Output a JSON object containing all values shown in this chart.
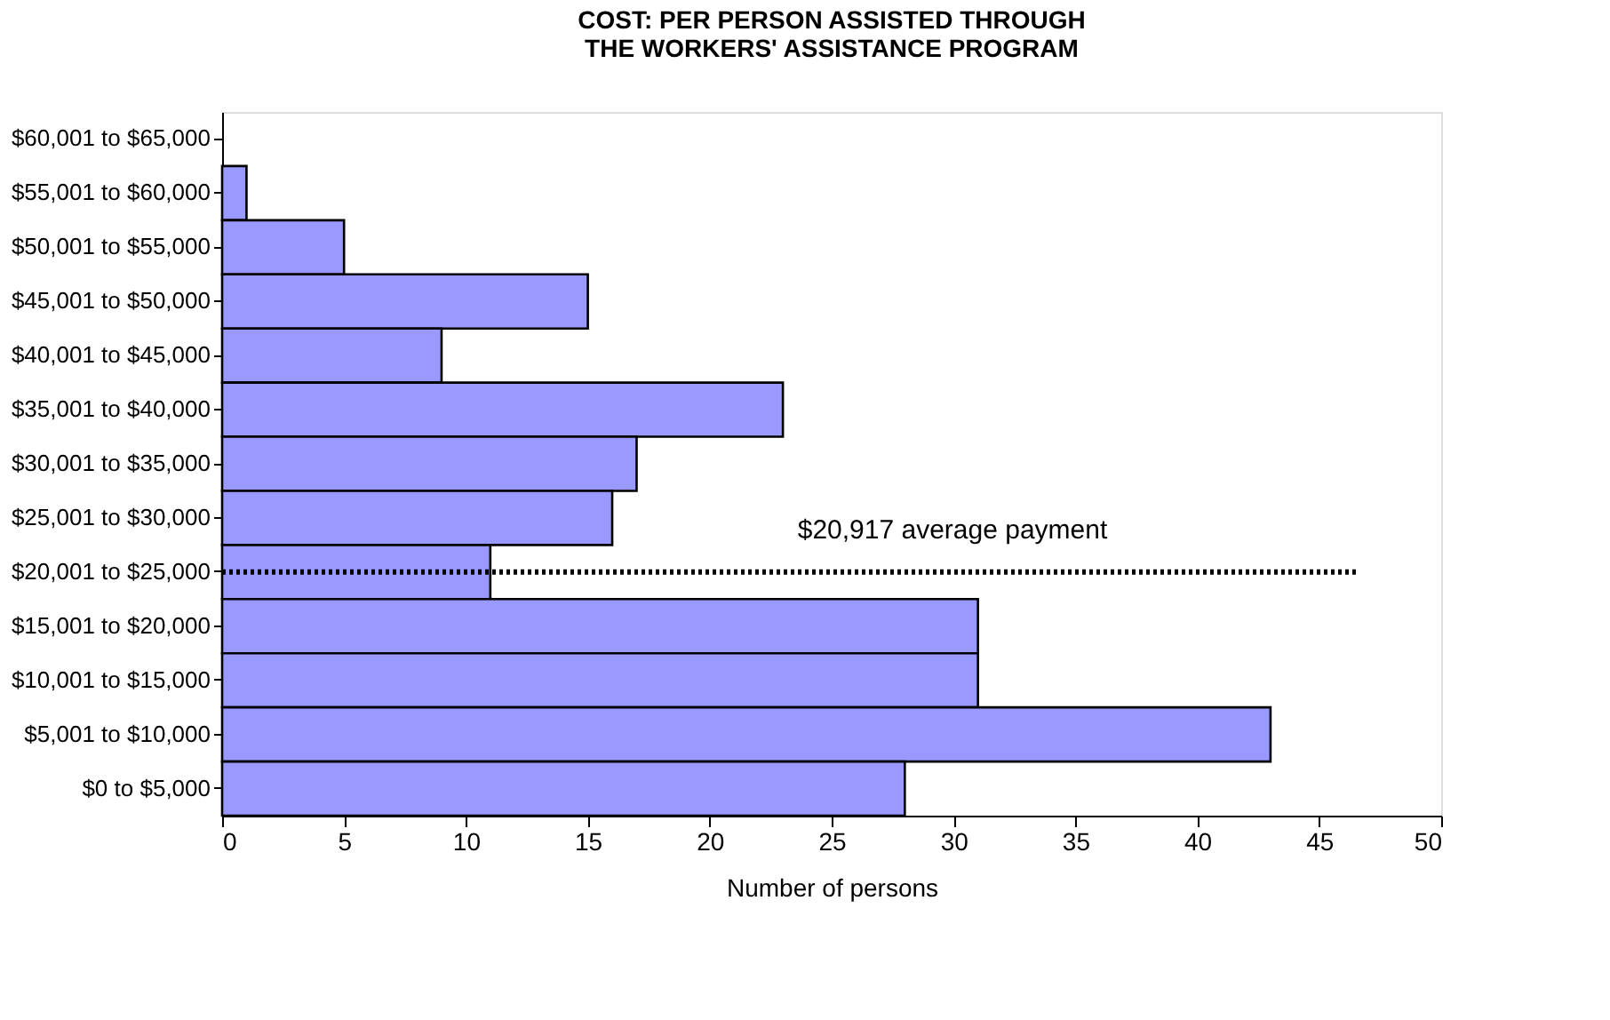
{
  "chart_data": {
    "type": "bar",
    "orientation": "horizontal",
    "title": [
      "COST: PER PERSON ASSISTED THROUGH",
      "THE WORKERS' ASSISTANCE PROGRAM"
    ],
    "xlabel": "Number of persons",
    "categories": [
      "$60,001 to $65,000",
      "$55,001 to $60,000",
      "$50,001 to $55,000",
      "$45,001 to $50,000",
      "$40,001 to $45,000",
      "$35,001 to $40,000",
      "$30,001 to $35,000",
      "$25,001 to $30,000",
      "$20,001 to $25,000",
      "$15,001 to $20,000",
      "$10,001 to $15,000",
      "$5,001 to $10,000",
      "$0 to $5,000"
    ],
    "values": [
      0,
      1,
      5,
      15,
      9,
      23,
      17,
      16,
      11,
      31,
      31,
      43,
      28
    ],
    "color": "#9999ff",
    "xlim": [
      0,
      50
    ],
    "xticks": [
      0,
      5,
      10,
      15,
      20,
      25,
      30,
      35,
      40,
      45,
      50
    ],
    "grid": false,
    "ref_lines": [
      {
        "axis": "y",
        "value": "$20,001 to $25,000",
        "label": "$20,917 average payment",
        "line_style": "dotted",
        "color": "#000000"
      }
    ]
  }
}
